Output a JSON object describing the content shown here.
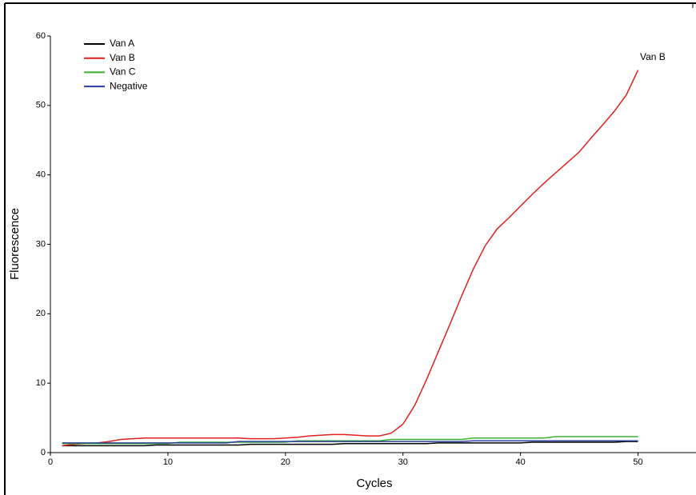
{
  "chart_data": {
    "type": "line",
    "x_label": "Cycles",
    "y_label": "Fluorescence",
    "annotation": "Van B",
    "x": [
      1,
      2,
      3,
      4,
      5,
      6,
      7,
      8,
      9,
      10,
      11,
      12,
      13,
      14,
      15,
      16,
      17,
      18,
      19,
      20,
      21,
      22,
      23,
      24,
      25,
      26,
      27,
      28,
      29,
      30,
      31,
      32,
      33,
      34,
      35,
      36,
      37,
      38,
      39,
      40,
      41,
      42,
      43,
      44,
      45,
      46,
      47,
      48,
      49,
      50
    ],
    "series": [
      {
        "name": "Van A",
        "color": "#000000",
        "values": [
          1.0,
          1.0,
          1.0,
          1.0,
          1.0,
          1.0,
          1.0,
          1.0,
          1.1,
          1.1,
          1.1,
          1.1,
          1.1,
          1.1,
          1.1,
          1.1,
          1.2,
          1.2,
          1.2,
          1.2,
          1.2,
          1.2,
          1.2,
          1.2,
          1.3,
          1.3,
          1.3,
          1.3,
          1.3,
          1.3,
          1.3,
          1.3,
          1.4,
          1.4,
          1.4,
          1.4,
          1.4,
          1.4,
          1.4,
          1.4,
          1.5,
          1.5,
          1.5,
          1.5,
          1.5,
          1.5,
          1.5,
          1.5,
          1.6,
          1.6
        ]
      },
      {
        "name": "Van B",
        "color": "#e02020",
        "values": [
          1.0,
          1.2,
          1.3,
          1.4,
          1.6,
          1.9,
          2.0,
          2.1,
          2.1,
          2.1,
          2.1,
          2.1,
          2.1,
          2.1,
          2.1,
          2.1,
          2.0,
          2.0,
          2.0,
          2.1,
          2.2,
          2.4,
          2.5,
          2.6,
          2.6,
          2.5,
          2.4,
          2.4,
          2.8,
          4.1,
          6.8,
          10.5,
          14.5,
          18.5,
          22.6,
          26.5,
          29.8,
          32.2,
          33.8,
          35.5,
          37.2,
          38.8,
          40.3,
          41.8,
          43.3,
          45.3,
          47.2,
          49.2,
          51.5,
          55.1
        ]
      },
      {
        "name": "Van C",
        "color": "#3cb030",
        "values": [
          1.3,
          1.3,
          1.3,
          1.3,
          1.3,
          1.3,
          1.3,
          1.3,
          1.3,
          1.3,
          1.5,
          1.5,
          1.5,
          1.5,
          1.5,
          1.5,
          1.5,
          1.5,
          1.5,
          1.5,
          1.7,
          1.7,
          1.7,
          1.7,
          1.7,
          1.7,
          1.7,
          1.7,
          1.9,
          1.9,
          1.9,
          1.9,
          1.9,
          1.9,
          1.9,
          2.1,
          2.1,
          2.1,
          2.1,
          2.1,
          2.1,
          2.1,
          2.3,
          2.3,
          2.3,
          2.3,
          2.3,
          2.3,
          2.3,
          2.3
        ]
      },
      {
        "name": "Negative",
        "color": "#2a3fa0",
        "values": [
          1.4,
          1.4,
          1.4,
          1.4,
          1.4,
          1.4,
          1.4,
          1.4,
          1.4,
          1.4,
          1.4,
          1.4,
          1.4,
          1.4,
          1.4,
          1.6,
          1.6,
          1.6,
          1.6,
          1.6,
          1.6,
          1.6,
          1.6,
          1.6,
          1.6,
          1.6,
          1.6,
          1.6,
          1.6,
          1.6,
          1.6,
          1.6,
          1.6,
          1.6,
          1.6,
          1.7,
          1.7,
          1.7,
          1.7,
          1.7,
          1.7,
          1.7,
          1.7,
          1.7,
          1.7,
          1.7,
          1.7,
          1.7,
          1.7,
          1.7
        ]
      }
    ],
    "xlim": [
      0,
      55
    ],
    "xticks": [
      0,
      10,
      20,
      30,
      40,
      50
    ],
    "ylim": [
      0,
      60
    ],
    "yticks": [
      0,
      10,
      20,
      30,
      40,
      50,
      60
    ],
    "legend": "upper-left"
  }
}
